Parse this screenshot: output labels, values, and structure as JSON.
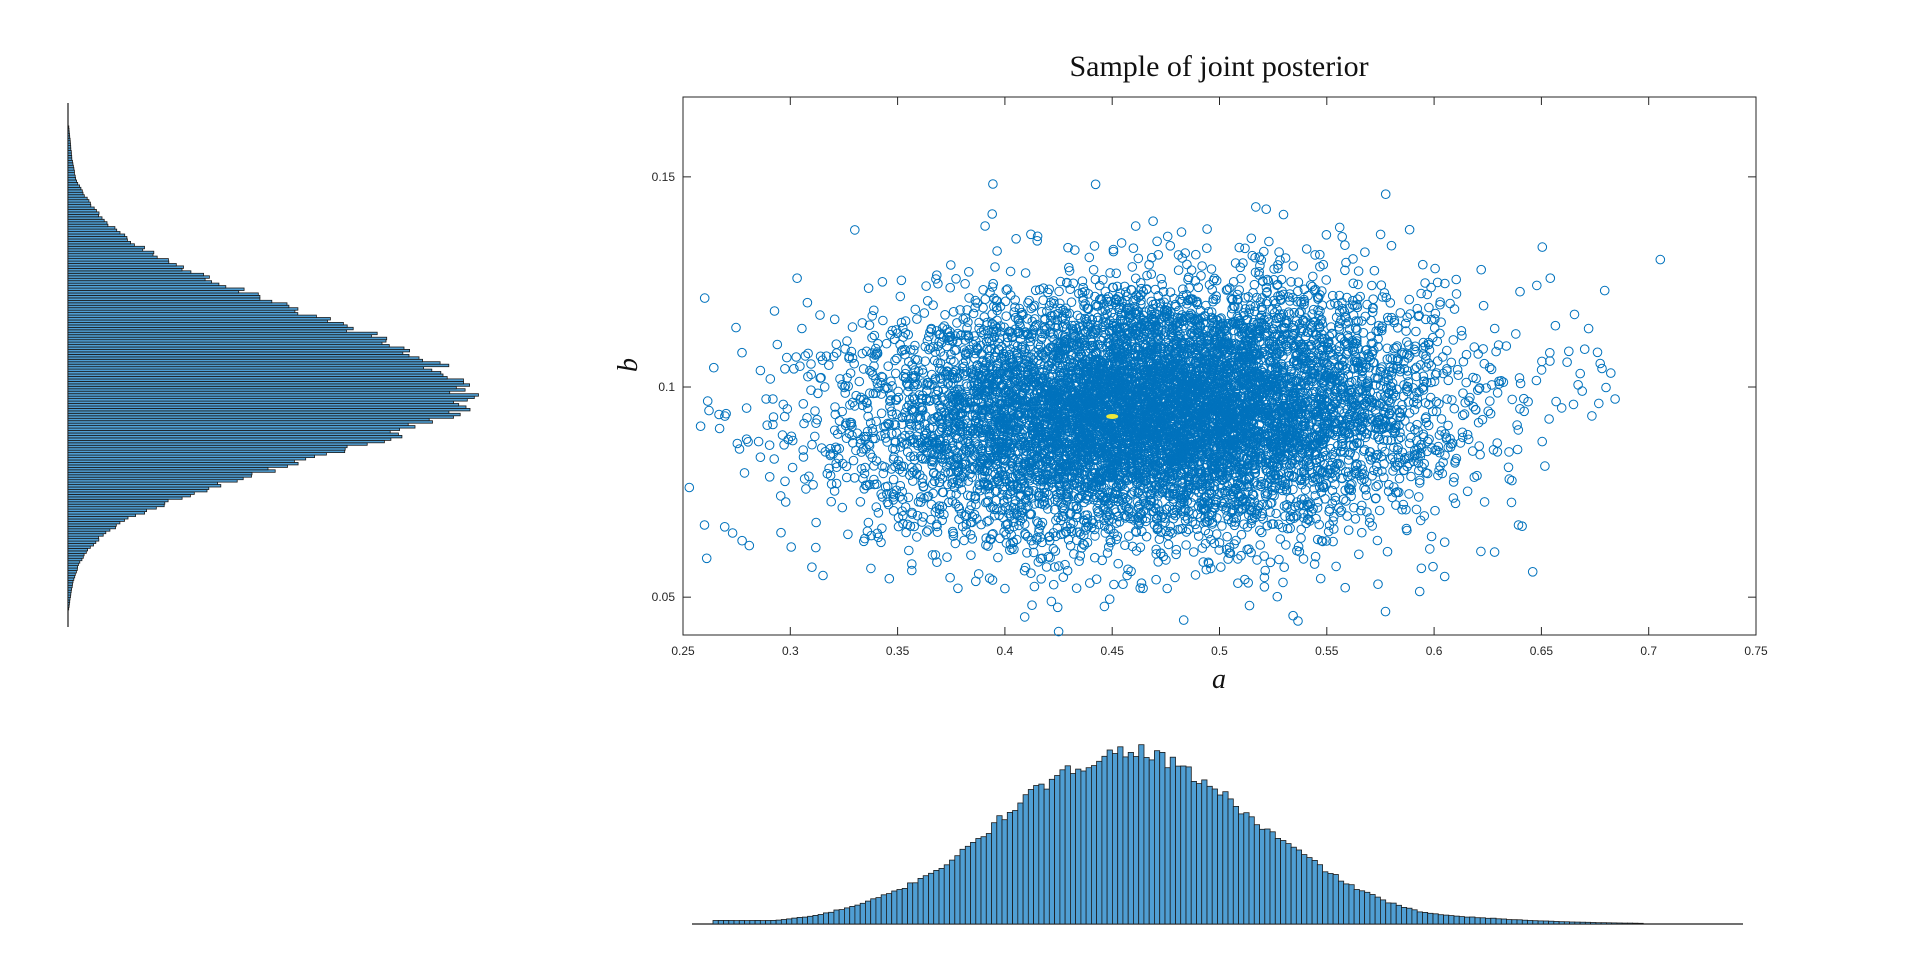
{
  "chart_data": [
    {
      "id": "joint",
      "type": "scatter",
      "title": "Sample of joint posterior",
      "xlabel": "a",
      "ylabel": "b",
      "xlim": [
        0.25,
        0.75
      ],
      "ylim": [
        0.041,
        0.169
      ],
      "xticks": [
        "0.25",
        "0.3",
        "0.35",
        "0.4",
        "0.45",
        "0.5",
        "0.55",
        "0.6",
        "0.65",
        "0.7",
        "0.75"
      ],
      "yticks": [
        "0.05",
        "0.1",
        "0.15"
      ],
      "grid": false,
      "marker": "open-circle",
      "color": "#0072BD",
      "highlight_color": "#EDE73A",
      "distribution": {
        "n_points": 9000,
        "mean_a": 0.47,
        "sd_a": 0.065,
        "mean_b": 0.094,
        "sd_b": 0.0145,
        "highlight_point": [
          0.45,
          0.093
        ]
      }
    },
    {
      "id": "marginal-a",
      "type": "bar",
      "orientation": "vertical",
      "xlim": [
        0.25,
        0.75
      ],
      "fill": "#4F9ED3",
      "edge": "#1a1a1a",
      "x": [
        0.29,
        0.31,
        0.33,
        0.35,
        0.36,
        0.37,
        0.38,
        0.39,
        0.4,
        0.41,
        0.42,
        0.43,
        0.44,
        0.45,
        0.46,
        0.47,
        0.48,
        0.49,
        0.5,
        0.51,
        0.52,
        0.53,
        0.54,
        0.55,
        0.56,
        0.57,
        0.58,
        0.59,
        0.6,
        0.62,
        0.64,
        0.66,
        0.68,
        0.7,
        0.72
      ],
      "values": [
        0.02,
        0.05,
        0.11,
        0.2,
        0.27,
        0.33,
        0.42,
        0.52,
        0.63,
        0.73,
        0.8,
        0.87,
        0.93,
        0.97,
        1.0,
        0.96,
        0.9,
        0.83,
        0.76,
        0.66,
        0.56,
        0.48,
        0.4,
        0.32,
        0.24,
        0.18,
        0.13,
        0.09,
        0.06,
        0.04,
        0.025,
        0.015,
        0.008,
        0.004,
        0.0
      ]
    },
    {
      "id": "marginal-b",
      "type": "bar",
      "orientation": "horizontal",
      "ylim": [
        0.041,
        0.169
      ],
      "fill": "#4F9ED3",
      "edge": "#1a1a1a",
      "y": [
        0.165,
        0.155,
        0.15,
        0.145,
        0.14,
        0.135,
        0.13,
        0.125,
        0.12,
        0.115,
        0.11,
        0.105,
        0.1,
        0.097,
        0.094,
        0.092,
        0.09,
        0.087,
        0.084,
        0.08,
        0.076,
        0.072,
        0.068,
        0.064,
        0.06,
        0.056,
        0.052,
        0.048,
        0.044
      ],
      "values": [
        0.0,
        0.01,
        0.02,
        0.05,
        0.09,
        0.16,
        0.25,
        0.38,
        0.52,
        0.67,
        0.8,
        0.9,
        0.95,
        0.98,
        1.0,
        0.93,
        0.86,
        0.78,
        0.66,
        0.52,
        0.38,
        0.26,
        0.16,
        0.09,
        0.05,
        0.025,
        0.012,
        0.005,
        0.0
      ]
    }
  ]
}
